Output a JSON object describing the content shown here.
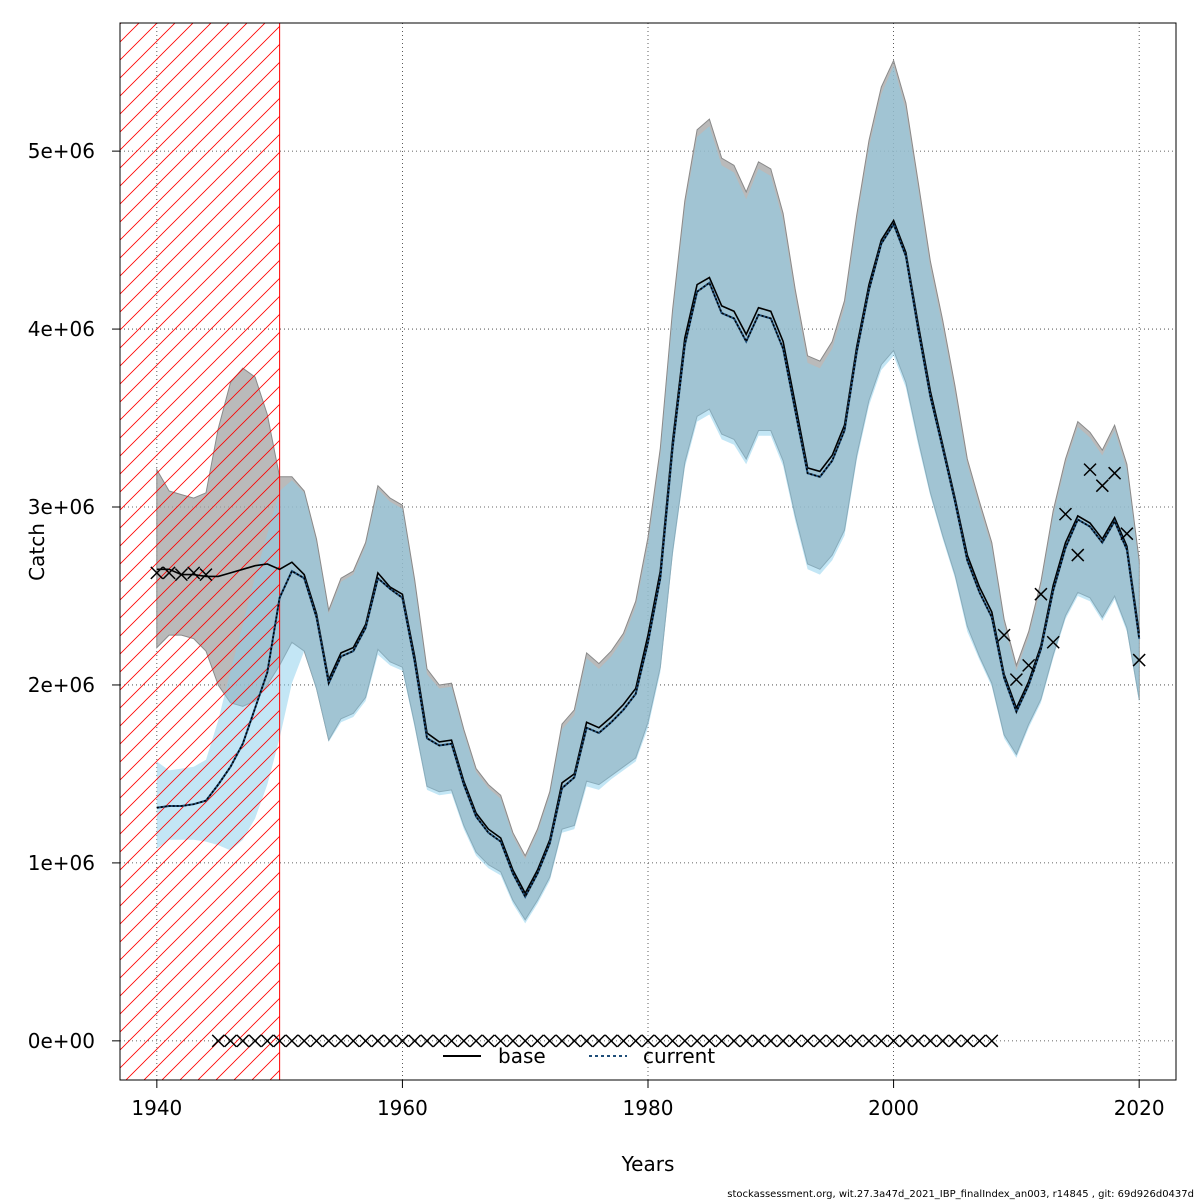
{
  "chart_data": {
    "type": "line",
    "xlabel": "Years",
    "ylabel": "Catch",
    "xlim": [
      1937,
      2023
    ],
    "ylim": [
      -220000,
      5720000
    ],
    "x_ticks": [
      1940,
      1960,
      1980,
      2000,
      2020
    ],
    "y_ticks": [
      0,
      1000000,
      2000000,
      3000000,
      4000000,
      5000000
    ],
    "x_tick_labels": [
      "1940",
      "1960",
      "1980",
      "2000",
      "2020"
    ],
    "y_tick_labels": [
      "0e+00",
      "1e+06",
      "2e+06",
      "3e+06",
      "4e+06",
      "5e+06"
    ],
    "grid": true,
    "legend_position": "bottom-center",
    "shaded_region": {
      "x_start": 1937,
      "x_end": 1950,
      "color": "#ff0000",
      "pattern": "hatched"
    },
    "colors": {
      "base_band": "#a3a3a3",
      "current_band": "#87ceeb",
      "base_line": "#000000",
      "current_line": "#1f4e79",
      "hatch": "#ff0000"
    },
    "series": [
      {
        "name": "base",
        "style": "solid",
        "x": [
          1940,
          1941,
          1942,
          1943,
          1944,
          1945,
          1946,
          1947,
          1948,
          1949,
          1950,
          1951,
          1952,
          1953,
          1954,
          1955,
          1956,
          1957,
          1958,
          1959,
          1960,
          1961,
          1962,
          1963,
          1964,
          1965,
          1966,
          1967,
          1968,
          1969,
          1970,
          1971,
          1972,
          1973,
          1974,
          1975,
          1976,
          1977,
          1978,
          1979,
          1980,
          1981,
          1982,
          1983,
          1984,
          1985,
          1986,
          1987,
          1988,
          1989,
          1990,
          1991,
          1992,
          1993,
          1994,
          1995,
          1996,
          1997,
          1998,
          1999,
          2000,
          2001,
          2002,
          2003,
          2004,
          2005,
          2006,
          2007,
          2008,
          2009,
          2010,
          2011,
          2012,
          2013,
          2014,
          2015,
          2016,
          2017,
          2018,
          2019,
          2020
        ],
        "y": [
          2650000,
          2650000,
          2620000,
          2620000,
          2610000,
          2610000,
          2630000,
          2650000,
          2670000,
          2680000,
          2650000,
          2690000,
          2620000,
          2400000,
          2030000,
          2180000,
          2210000,
          2340000,
          2630000,
          2550000,
          2510000,
          2160000,
          1730000,
          1680000,
          1690000,
          1460000,
          1280000,
          1190000,
          1140000,
          960000,
          830000,
          960000,
          1130000,
          1450000,
          1500000,
          1790000,
          1760000,
          1820000,
          1890000,
          1980000,
          2280000,
          2640000,
          3370000,
          3950000,
          4250000,
          4290000,
          4130000,
          4100000,
          3970000,
          4120000,
          4100000,
          3930000,
          3580000,
          3220000,
          3200000,
          3290000,
          3460000,
          3900000,
          4250000,
          4500000,
          4610000,
          4430000,
          4030000,
          3650000,
          3350000,
          3050000,
          2730000,
          2550000,
          2410000,
          2060000,
          1870000,
          2020000,
          2220000,
          2560000,
          2800000,
          2950000,
          2910000,
          2820000,
          2940000,
          2780000,
          2290000
        ],
        "lower": [
          2210000,
          2280000,
          2280000,
          2260000,
          2190000,
          2000000,
          1900000,
          1880000,
          1910000,
          2000000,
          2110000,
          2240000,
          2190000,
          1980000,
          1690000,
          1810000,
          1840000,
          1930000,
          2200000,
          2130000,
          2100000,
          1780000,
          1430000,
          1400000,
          1410000,
          1210000,
          1060000,
          990000,
          950000,
          790000,
          680000,
          790000,
          920000,
          1190000,
          1210000,
          1460000,
          1440000,
          1490000,
          1540000,
          1590000,
          1790000,
          2100000,
          2750000,
          3250000,
          3510000,
          3550000,
          3410000,
          3380000,
          3270000,
          3430000,
          3430000,
          3260000,
          2950000,
          2680000,
          2650000,
          2730000,
          2870000,
          3290000,
          3600000,
          3800000,
          3880000,
          3700000,
          3380000,
          3080000,
          2840000,
          2620000,
          2330000,
          2160000,
          2010000,
          1720000,
          1610000,
          1780000,
          1920000,
          2170000,
          2390000,
          2520000,
          2490000,
          2380000,
          2500000,
          2320000,
          1920000
        ],
        "upper": [
          3210000,
          3090000,
          3070000,
          3050000,
          3080000,
          3440000,
          3700000,
          3780000,
          3730000,
          3520000,
          3170000,
          3170000,
          3090000,
          2820000,
          2420000,
          2600000,
          2640000,
          2800000,
          3120000,
          3050000,
          3010000,
          2590000,
          2090000,
          2000000,
          2010000,
          1750000,
          1530000,
          1440000,
          1380000,
          1170000,
          1040000,
          1190000,
          1400000,
          1780000,
          1860000,
          2180000,
          2120000,
          2190000,
          2290000,
          2470000,
          2830000,
          3330000,
          4110000,
          4720000,
          5120000,
          5180000,
          4960000,
          4920000,
          4770000,
          4940000,
          4900000,
          4650000,
          4220000,
          3850000,
          3820000,
          3930000,
          4160000,
          4640000,
          5060000,
          5360000,
          5510000,
          5270000,
          4830000,
          4380000,
          4050000,
          3680000,
          3270000,
          3030000,
          2800000,
          2370000,
          2110000,
          2300000,
          2580000,
          2980000,
          3270000,
          3480000,
          3420000,
          3320000,
          3460000,
          3240000,
          2700000
        ]
      },
      {
        "name": "current",
        "style": "dotted",
        "x": [
          1940,
          1941,
          1942,
          1943,
          1944,
          1945,
          1946,
          1947,
          1948,
          1949,
          1950,
          1951,
          1952,
          1953,
          1954,
          1955,
          1956,
          1957,
          1958,
          1959,
          1960,
          1961,
          1962,
          1963,
          1964,
          1965,
          1966,
          1967,
          1968,
          1969,
          1970,
          1971,
          1972,
          1973,
          1974,
          1975,
          1976,
          1977,
          1978,
          1979,
          1980,
          1981,
          1982,
          1983,
          1984,
          1985,
          1986,
          1987,
          1988,
          1989,
          1990,
          1991,
          1992,
          1993,
          1994,
          1995,
          1996,
          1997,
          1998,
          1999,
          2000,
          2001,
          2002,
          2003,
          2004,
          2005,
          2006,
          2007,
          2008,
          2009,
          2010,
          2011,
          2012,
          2013,
          2014,
          2015,
          2016,
          2017,
          2018,
          2019,
          2020
        ],
        "y": [
          1310000,
          1320000,
          1320000,
          1330000,
          1350000,
          1440000,
          1540000,
          1670000,
          1870000,
          2070000,
          2490000,
          2640000,
          2600000,
          2380000,
          2010000,
          2160000,
          2190000,
          2320000,
          2600000,
          2540000,
          2490000,
          2130000,
          1700000,
          1660000,
          1670000,
          1440000,
          1260000,
          1170000,
          1120000,
          940000,
          810000,
          940000,
          1110000,
          1420000,
          1480000,
          1760000,
          1730000,
          1790000,
          1860000,
          1950000,
          2240000,
          2600000,
          3330000,
          3910000,
          4210000,
          4260000,
          4090000,
          4060000,
          3930000,
          4080000,
          4060000,
          3890000,
          3540000,
          3190000,
          3170000,
          3260000,
          3430000,
          3870000,
          4220000,
          4480000,
          4590000,
          4410000,
          4000000,
          3620000,
          3330000,
          3030000,
          2700000,
          2520000,
          2380000,
          2040000,
          1850000,
          2000000,
          2200000,
          2530000,
          2770000,
          2930000,
          2890000,
          2800000,
          2920000,
          2760000,
          2260000
        ],
        "lower": [
          1080000,
          1130000,
          1130000,
          1130000,
          1120000,
          1100000,
          1070000,
          1130000,
          1250000,
          1440000,
          1700000,
          2010000,
          2190000,
          1970000,
          1680000,
          1790000,
          1820000,
          1910000,
          2170000,
          2110000,
          2080000,
          1760000,
          1410000,
          1380000,
          1390000,
          1190000,
          1040000,
          970000,
          930000,
          770000,
          660000,
          770000,
          900000,
          1170000,
          1190000,
          1430000,
          1410000,
          1470000,
          1520000,
          1570000,
          1760000,
          2070000,
          2720000,
          3220000,
          3480000,
          3520000,
          3380000,
          3350000,
          3240000,
          3400000,
          3400000,
          3230000,
          2920000,
          2650000,
          2620000,
          2700000,
          2840000,
          3260000,
          3570000,
          3770000,
          3850000,
          3670000,
          3350000,
          3060000,
          2820000,
          2600000,
          2300000,
          2140000,
          1990000,
          1700000,
          1590000,
          1760000,
          1900000,
          2150000,
          2370000,
          2500000,
          2470000,
          2360000,
          2480000,
          2300000,
          1900000
        ],
        "upper": [
          1570000,
          1520000,
          1530000,
          1540000,
          1580000,
          1800000,
          2080000,
          2340000,
          2610000,
          2850000,
          3090000,
          3150000,
          3080000,
          2800000,
          2400000,
          2580000,
          2620000,
          2780000,
          3100000,
          3030000,
          2990000,
          2560000,
          2060000,
          1980000,
          1990000,
          1730000,
          1510000,
          1420000,
          1360000,
          1150000,
          1020000,
          1170000,
          1380000,
          1750000,
          1830000,
          2150000,
          2090000,
          2160000,
          2260000,
          2440000,
          2790000,
          3290000,
          4070000,
          4680000,
          5080000,
          5140000,
          4920000,
          4880000,
          4730000,
          4900000,
          4860000,
          4610000,
          4180000,
          3810000,
          3780000,
          3890000,
          4120000,
          4600000,
          5020000,
          5320000,
          5480000,
          5230000,
          4790000,
          4340000,
          4010000,
          3640000,
          3240000,
          3000000,
          2770000,
          2340000,
          2080000,
          2270000,
          2550000,
          2950000,
          3240000,
          3450000,
          3390000,
          3290000,
          3430000,
          3210000,
          2670000
        ]
      },
      {
        "name": "observed",
        "style": "points",
        "x": [
          1940,
          1941,
          1942,
          1943,
          1944,
          1945,
          1946,
          1947,
          1948,
          1949,
          1950,
          1951,
          1952,
          1953,
          1954,
          1955,
          1956,
          1957,
          1958,
          1959,
          1960,
          1961,
          1962,
          1963,
          1964,
          1965,
          1966,
          1967,
          1968,
          1969,
          1970,
          1971,
          1972,
          1973,
          1974,
          1975,
          1976,
          1977,
          1978,
          1979,
          1980,
          1981,
          1982,
          1983,
          1984,
          1985,
          1986,
          1987,
          1988,
          1989,
          1990,
          1991,
          1992,
          1993,
          1994,
          1995,
          1996,
          1997,
          1998,
          1999,
          2000,
          2001,
          2002,
          2003,
          2004,
          2005,
          2006,
          2007,
          2008,
          2009,
          2010,
          2011,
          2012,
          2013,
          2014,
          2015,
          2016,
          2017,
          2018,
          2019,
          2020
        ],
        "y": [
          2630000,
          2630000,
          2620000,
          2630000,
          2620000,
          0,
          0,
          0,
          0,
          0,
          0,
          0,
          0,
          0,
          0,
          0,
          0,
          0,
          0,
          0,
          0,
          0,
          0,
          0,
          0,
          0,
          0,
          0,
          0,
          0,
          0,
          0,
          0,
          0,
          0,
          0,
          0,
          0,
          0,
          0,
          0,
          0,
          0,
          0,
          0,
          0,
          0,
          0,
          0,
          0,
          0,
          0,
          0,
          0,
          0,
          0,
          0,
          0,
          0,
          0,
          0,
          0,
          0,
          0,
          0,
          0,
          0,
          0,
          0,
          2280000,
          2030000,
          2110000,
          2510000,
          2240000,
          2960000,
          2730000,
          3210000,
          3120000,
          3190000,
          2850000,
          2140000
        ]
      }
    ],
    "legend": [
      {
        "label": "base",
        "style": "solid"
      },
      {
        "label": "current",
        "style": "dotted"
      }
    ]
  },
  "footer": "stockassessment.org, wit.27.3a47d_2021_IBP_finalIndex_an003, r14845 , git: 69d926d0437d"
}
